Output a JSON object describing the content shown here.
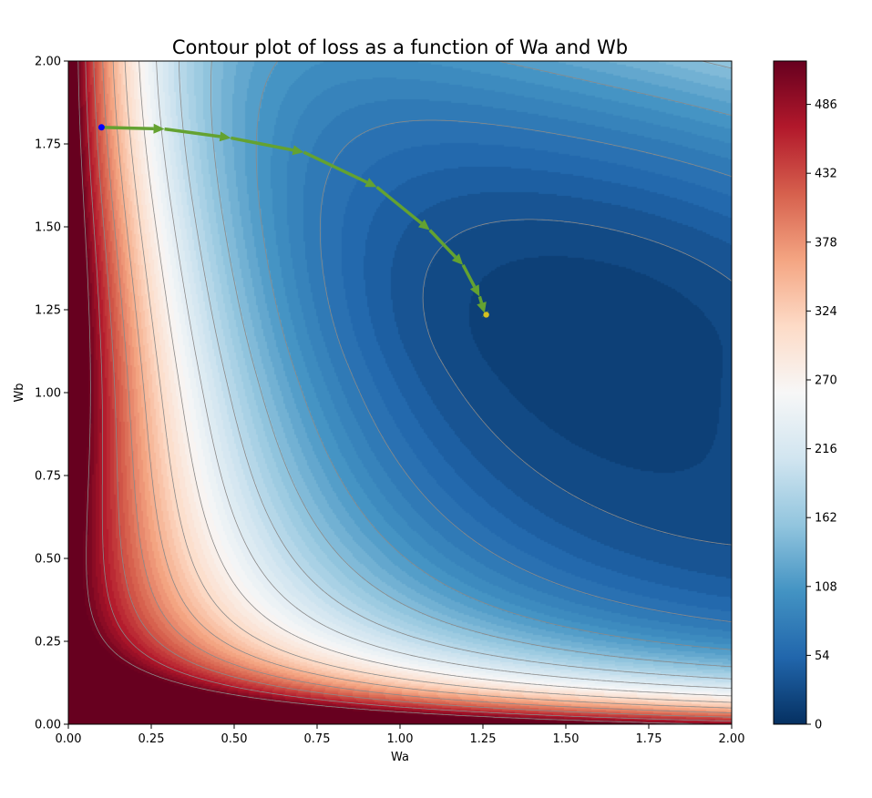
{
  "chart_data": {
    "type": "contour",
    "title": "Contour plot of loss as a function of Wa and Wb",
    "xlabel": "Wa",
    "ylabel": "Wb",
    "xlim": [
      0,
      2
    ],
    "ylim": [
      0,
      2
    ],
    "x_ticks": [
      "0.00",
      "0.25",
      "0.50",
      "0.75",
      "1.00",
      "1.25",
      "1.50",
      "1.75",
      "2.00"
    ],
    "y_ticks": [
      "0.00",
      "0.25",
      "0.50",
      "0.75",
      "1.00",
      "1.25",
      "1.50",
      "1.75",
      "2.00"
    ],
    "x_tick_values": [
      0,
      0.25,
      0.5,
      0.75,
      1.0,
      1.25,
      1.5,
      1.75,
      2.0
    ],
    "y_tick_values": [
      0,
      0.25,
      0.5,
      0.75,
      1.0,
      1.25,
      1.5,
      1.75,
      2.0
    ],
    "colorbar": {
      "tick_values": [
        0,
        54,
        108,
        162,
        216,
        270,
        324,
        378,
        432,
        486
      ],
      "tick_labels": [
        "0",
        "54",
        "108",
        "162",
        "216",
        "270",
        "324",
        "378",
        "432",
        "486"
      ],
      "range": [
        0,
        520
      ],
      "colormap": "RdBu_r"
    },
    "path": {
      "name": "",
      "color": "#64a231",
      "start_color": "#0000ff",
      "end_color": "#d4c020",
      "points": [
        {
          "wa": 0.1,
          "wb": 1.8
        },
        {
          "wa": 0.29,
          "wb": 1.795
        },
        {
          "wa": 0.49,
          "wb": 1.768
        },
        {
          "wa": 0.71,
          "wb": 1.725
        },
        {
          "wa": 0.93,
          "wb": 1.62
        },
        {
          "wa": 1.09,
          "wb": 1.49
        },
        {
          "wa": 1.19,
          "wb": 1.385
        },
        {
          "wa": 1.24,
          "wb": 1.29
        },
        {
          "wa": 1.255,
          "wb": 1.24
        },
        {
          "wa": 1.26,
          "wb": 1.235
        }
      ]
    },
    "grid": false
  }
}
